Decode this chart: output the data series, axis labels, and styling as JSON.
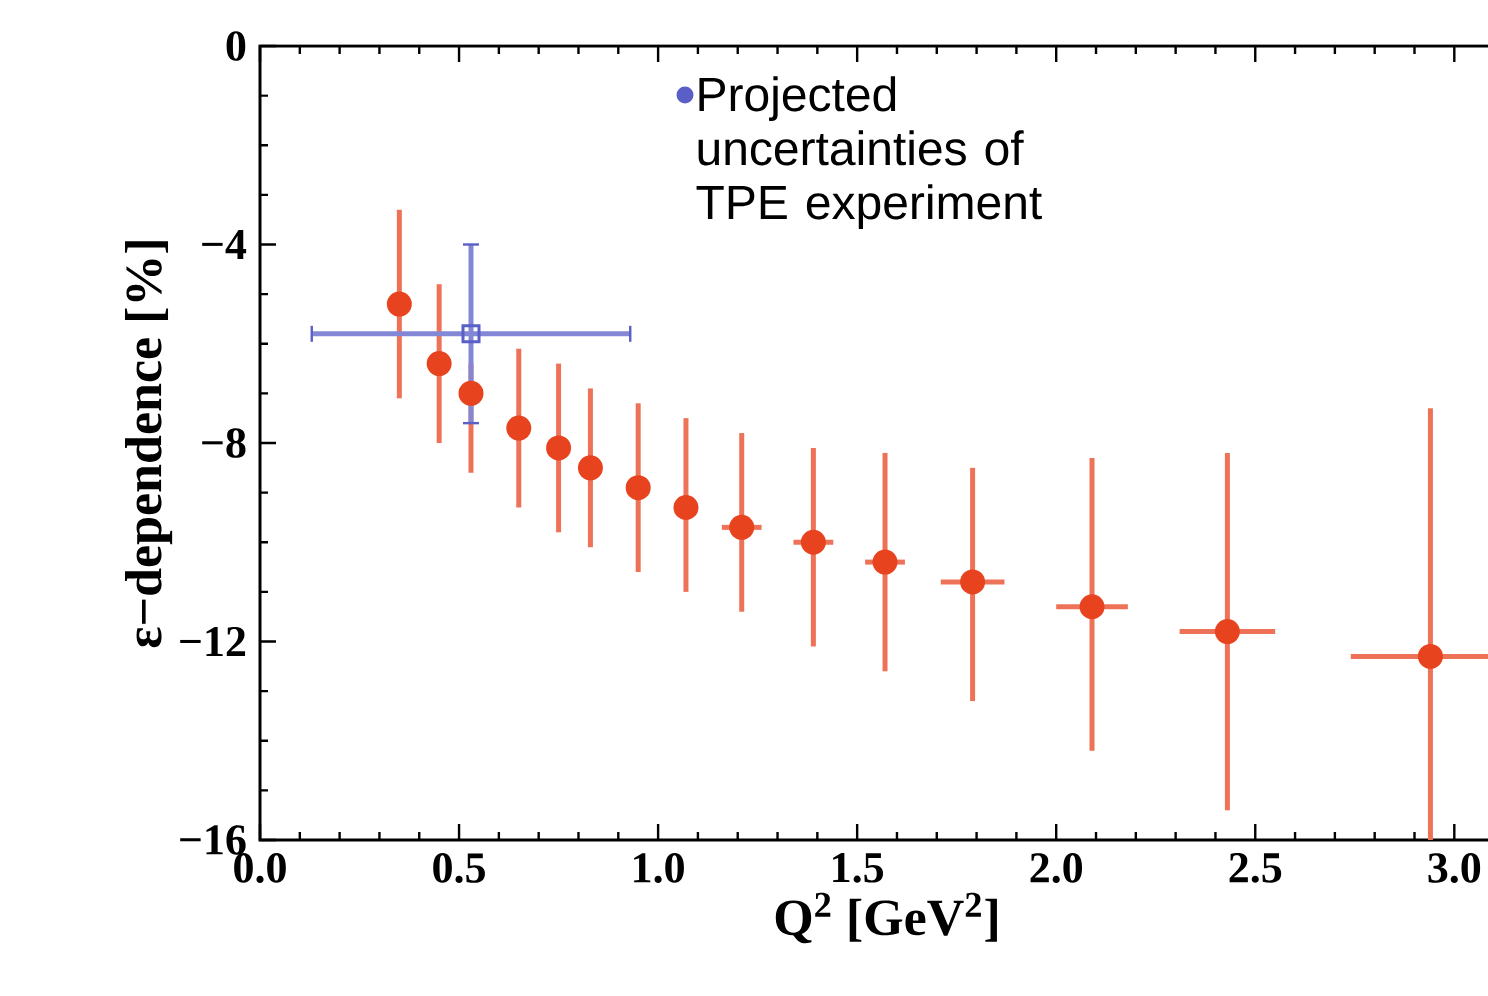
{
  "chart_data": {
    "type": "scatter",
    "xlabel": "Q$^{2}$ [GeV$^{2}$]",
    "ylabel": "ε−dependence [%]",
    "xlim": [
      0,
      3.15
    ],
    "ylim": [
      -16,
      0
    ],
    "xticks": [
      {
        "value": 0,
        "label": "0.0"
      },
      {
        "value": 0.5,
        "label": "0.5"
      },
      {
        "value": 1,
        "label": "1.0"
      },
      {
        "value": 1.5,
        "label": "1.5"
      },
      {
        "value": 2,
        "label": "2.0"
      },
      {
        "value": 2.5,
        "label": "2.5"
      },
      {
        "value": 3,
        "label": "3.0"
      }
    ],
    "yticks": [
      {
        "value": -16,
        "label": "−16"
      },
      {
        "value": -12,
        "label": "−12"
      },
      {
        "value": -8,
        "label": "−8"
      },
      {
        "value": -4,
        "label": "−4"
      },
      {
        "value": 0,
        "label": "0"
      }
    ],
    "grid": false,
    "legend": "top",
    "marker": "circle",
    "series": [
      {
        "color": "#e8431f",
        "x": [
          0.35,
          0.45,
          0.53,
          0.65,
          0.75,
          0.83,
          0.95,
          1.07,
          1.21,
          1.39,
          1.57,
          1.79,
          2.09,
          2.43,
          2.94
        ],
        "values": [
          -5.2,
          -6.4,
          -7.0,
          -7.7,
          -8.1,
          -8.5,
          -8.9,
          -9.3,
          -9.7,
          -10.0,
          -10.4,
          -10.8,
          -11.3,
          -11.8,
          -12.3
        ],
        "errors": [
          [
            -7.1,
            -3.3
          ],
          [
            -8.0,
            -4.8
          ],
          [
            -8.6,
            -6.4
          ],
          [
            -9.3,
            -6.1
          ],
          [
            -9.8,
            -6.4
          ],
          [
            -10.1,
            -6.9
          ],
          [
            -10.6,
            -7.2
          ],
          [
            -11.0,
            -7.5
          ],
          [
            -11.4,
            -7.8
          ],
          [
            -12.1,
            -8.1
          ],
          [
            -12.6,
            -8.2
          ],
          [
            -13.2,
            -8.5
          ],
          [
            -14.2,
            -8.3
          ],
          [
            -15.4,
            -8.2
          ],
          [
            -16,
            -7.3
          ]
        ],
        "xerrors": [
          null,
          null,
          null,
          null,
          null,
          null,
          null,
          null,
          0.05,
          0.05,
          0.05,
          0.08,
          0.09,
          0.12,
          [
            2.74,
            3.14
          ]
        ]
      },
      {
        "name": "Projected uncertainties of TPE experiment",
        "color": "#5a5fc8",
        "marker": "square",
        "x": [
          0.53
        ],
        "values": [
          -5.8
        ],
        "errors": [
          [
            -7.6,
            -4.0
          ]
        ],
        "xerrors": [
          [
            0.13,
            0.93
          ]
        ]
      }
    ]
  }
}
